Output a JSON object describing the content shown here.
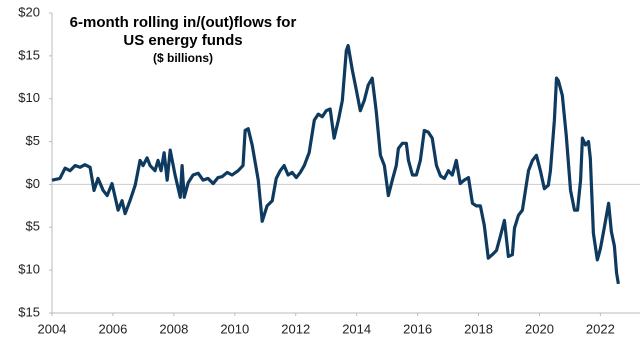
{
  "chart_data": {
    "type": "line",
    "title": "6-month rolling in/(out)flows for US energy funds",
    "subtitle": "($ billions)",
    "xlim": [
      2004,
      2023.3
    ],
    "xticks": [
      2004,
      2006,
      2008,
      2010,
      2012,
      2014,
      2016,
      2018,
      2020,
      2022
    ],
    "ylim": [
      -15,
      20
    ],
    "yticks": [
      {
        "value": 20,
        "label": "$20"
      },
      {
        "value": 15,
        "label": "$15"
      },
      {
        "value": 10,
        "label": "$10"
      },
      {
        "value": 5,
        "label": "$5"
      },
      {
        "value": 0,
        "label": "$0"
      },
      {
        "value": -5,
        "label": "$5"
      },
      {
        "value": -10,
        "label": "$10"
      },
      {
        "value": -15,
        "label": "$15"
      }
    ],
    "x": [
      2004.0,
      2004.26,
      2004.43,
      2004.59,
      2004.76,
      2004.92,
      2005.08,
      2005.25,
      2005.38,
      2005.51,
      2005.68,
      2005.81,
      2005.97,
      2006.17,
      2006.3,
      2006.4,
      2006.56,
      2006.73,
      2006.89,
      2006.99,
      2007.12,
      2007.22,
      2007.38,
      2007.48,
      2007.58,
      2007.68,
      2007.78,
      2007.88,
      2008.04,
      2008.21,
      2008.27,
      2008.34,
      2008.47,
      2008.63,
      2008.8,
      2008.96,
      2009.12,
      2009.29,
      2009.45,
      2009.58,
      2009.75,
      2009.91,
      2010.11,
      2010.27,
      2010.34,
      2010.44,
      2010.57,
      2010.77,
      2010.9,
      2011.06,
      2011.23,
      2011.36,
      2011.49,
      2011.62,
      2011.75,
      2011.88,
      2012.02,
      2012.15,
      2012.28,
      2012.44,
      2012.61,
      2012.74,
      2012.87,
      2013.0,
      2013.13,
      2013.26,
      2013.4,
      2013.53,
      2013.66,
      2013.72,
      2013.86,
      2013.99,
      2014.12,
      2014.25,
      2014.38,
      2014.51,
      2014.64,
      2014.78,
      2014.91,
      2015.04,
      2015.17,
      2015.3,
      2015.37,
      2015.5,
      2015.63,
      2015.7,
      2015.83,
      2015.96,
      2016.09,
      2016.22,
      2016.35,
      2016.48,
      2016.62,
      2016.75,
      2016.88,
      2017.01,
      2017.14,
      2017.27,
      2017.4,
      2017.53,
      2017.67,
      2017.8,
      2017.93,
      2018.06,
      2018.19,
      2018.32,
      2018.45,
      2018.59,
      2018.72,
      2018.85,
      2018.98,
      2019.11,
      2019.18,
      2019.31,
      2019.44,
      2019.64,
      2019.77,
      2019.9,
      2020.03,
      2020.16,
      2020.29,
      2020.36,
      2020.49,
      2020.56,
      2020.62,
      2020.75,
      2020.88,
      2021.02,
      2021.15,
      2021.25,
      2021.35,
      2021.41,
      2021.51,
      2021.61,
      2021.67,
      2021.77,
      2021.9,
      2022.0,
      2022.13,
      2022.27,
      2022.36,
      2022.46,
      2022.53,
      2022.59
    ],
    "series": [
      {
        "color": "#0f3a5f",
        "values": [
          0.5,
          0.7,
          1.9,
          1.6,
          2.2,
          2.0,
          2.3,
          2.0,
          -0.7,
          0.7,
          -0.7,
          -1.3,
          0.1,
          -3.0,
          -1.9,
          -3.4,
          -1.9,
          -0.1,
          2.8,
          2.2,
          3.1,
          2.2,
          1.6,
          2.8,
          1.6,
          3.7,
          0.5,
          4.0,
          1.1,
          -1.5,
          2.2,
          -1.5,
          0.2,
          1.1,
          1.3,
          0.5,
          0.7,
          0.1,
          0.8,
          0.9,
          1.4,
          1.1,
          1.6,
          2.2,
          6.3,
          6.5,
          4.6,
          0.5,
          -4.3,
          -2.5,
          -1.9,
          0.7,
          1.6,
          2.2,
          1.1,
          1.4,
          0.8,
          1.4,
          2.2,
          3.7,
          7.5,
          8.2,
          7.9,
          8.6,
          8.8,
          5.4,
          7.5,
          9.8,
          15.6,
          16.2,
          13.3,
          11.0,
          8.6,
          9.8,
          11.6,
          12.4,
          8.6,
          3.4,
          2.2,
          -1.3,
          0.5,
          2.2,
          4.2,
          4.8,
          4.8,
          2.8,
          1.1,
          1.1,
          2.8,
          6.3,
          6.1,
          5.4,
          2.2,
          1.0,
          0.7,
          1.6,
          1.1,
          2.8,
          0.1,
          0.5,
          0.8,
          -2.2,
          -2.5,
          -2.5,
          -4.8,
          -8.6,
          -8.2,
          -7.7,
          -6.0,
          -4.2,
          -8.4,
          -8.2,
          -5.1,
          -3.6,
          -3.0,
          1.6,
          2.8,
          3.4,
          1.6,
          -0.5,
          -0.1,
          1.6,
          7.5,
          12.4,
          12.1,
          10.4,
          5.7,
          -0.7,
          -3.0,
          -3.0,
          0.5,
          5.4,
          4.6,
          5.0,
          3.0,
          -5.7,
          -8.8,
          -7.5,
          -5.0,
          -2.2,
          -5.5,
          -7.2,
          -10.3,
          -11.6
        ]
      }
    ]
  }
}
